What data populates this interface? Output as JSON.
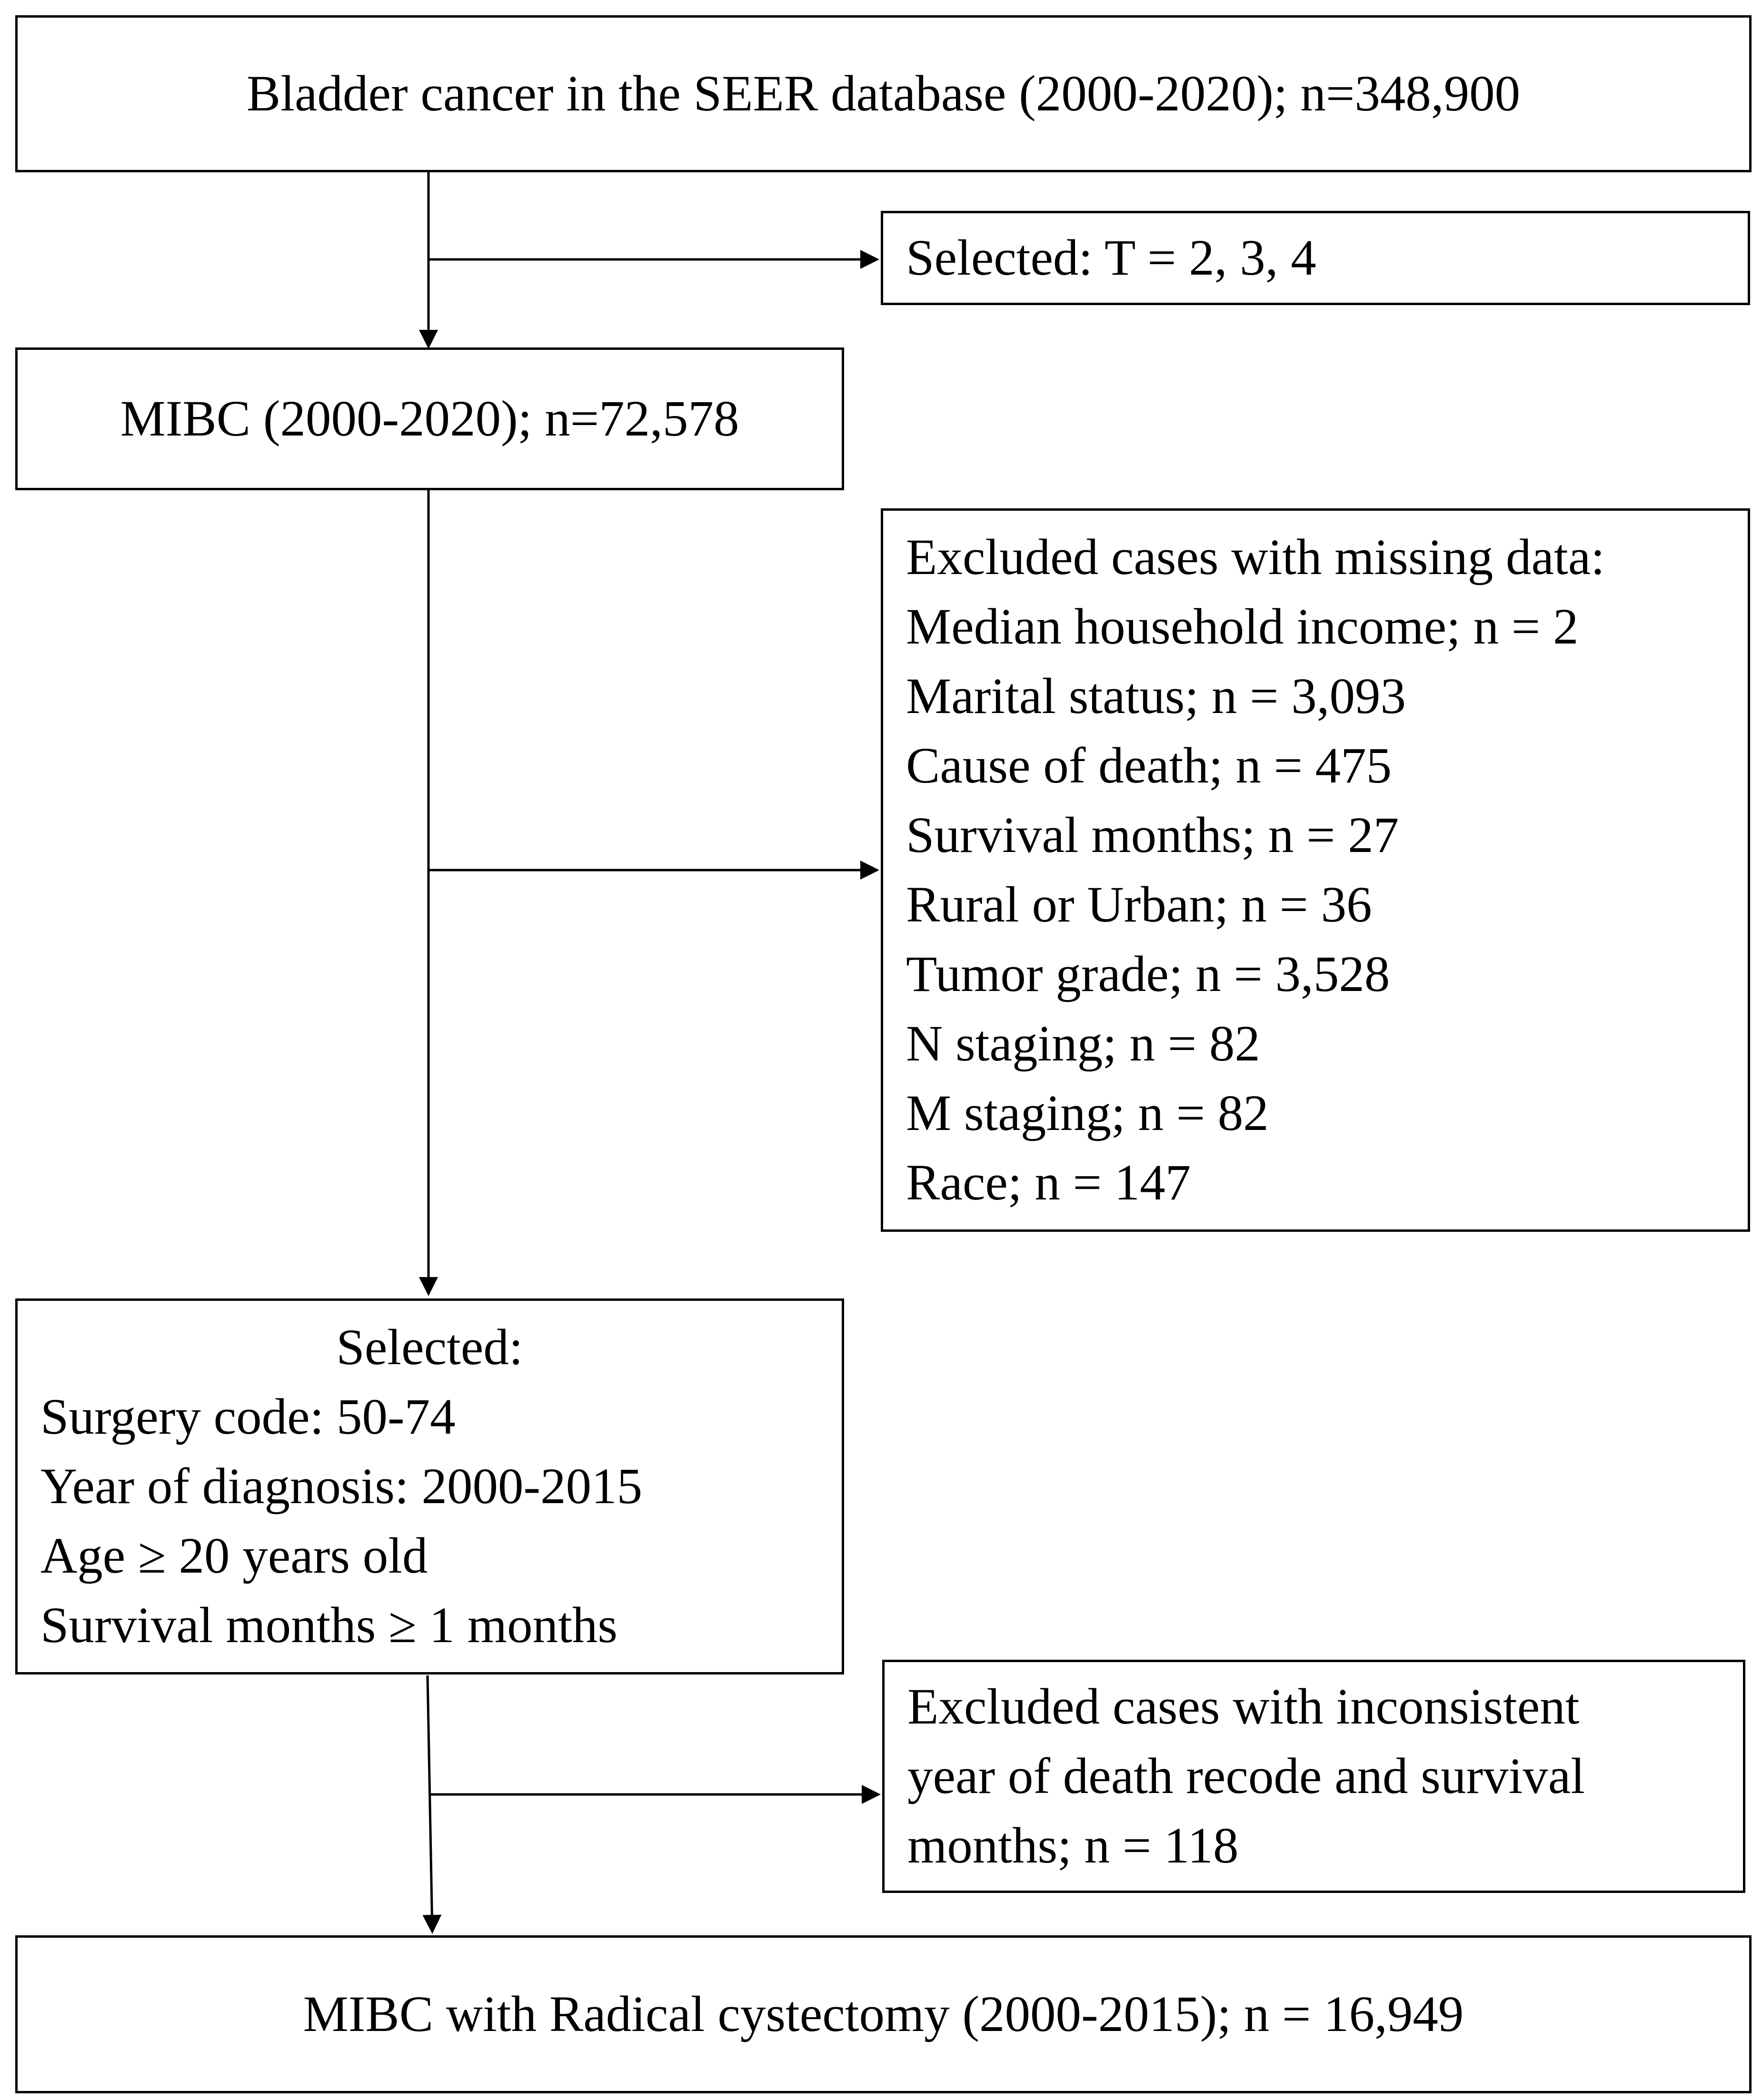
{
  "boxes": {
    "source": "Bladder cancer in the SEER database (2000-2020); n=348,900",
    "filter_t": "Selected: T = 2, 3, 4",
    "mibc": "MIBC (2000-2020); n=72,578",
    "excluded_missing": {
      "lines": [
        "Excluded cases with missing data:",
        "Median household income; n = 2",
        "Marital status; n = 3,093",
        "Cause of death; n = 475",
        "Survival months; n = 27",
        "Rural or Urban; n = 36",
        "Tumor grade; n = 3,528",
        "N staging; n = 82",
        "M staging; n = 82",
        "Race; n = 147"
      ]
    },
    "selected_criteria": {
      "heading": "Selected:",
      "lines": [
        "Surgery code: 50-74",
        "Year of diagnosis: 2000-2015",
        "Age ≥ 20 years old",
        "Survival months ≥ 1 months"
      ]
    },
    "excluded_inconsistent": {
      "lines": [
        "Excluded cases with inconsistent",
        "year of death recode and survival",
        "months; n = 118"
      ]
    },
    "final": "MIBC with Radical cystectomy (2000-2015); n = 16,949"
  },
  "colors": {
    "stroke": "#000000",
    "background": "#ffffff"
  }
}
